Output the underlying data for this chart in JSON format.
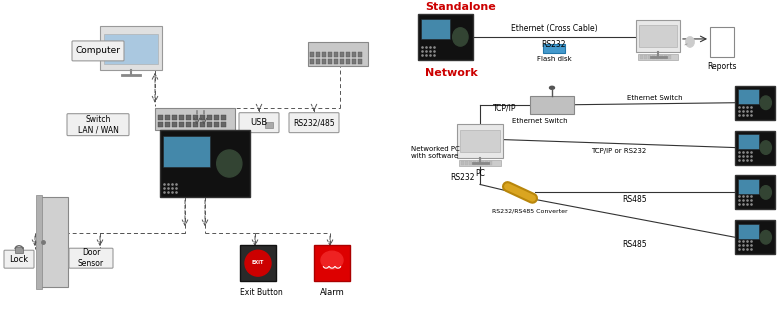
{
  "bg_color": "#ffffff",
  "left": {
    "computer_label": "Computer",
    "switch_label": "Switch\nLAN / WAN",
    "usb_label": "USB",
    "rs232_label": "RS232/485",
    "lock_label": "Lock",
    "door_sensor_label": "Door\nSensor",
    "exit_button_label": "Exit\nButton",
    "alarm_label": "Alarm"
  },
  "right": {
    "standalone_label": "Standalone",
    "network_label": "Network",
    "ethernet_label": "Ethernet (Cross Cable)",
    "rs232_sa": "RS232",
    "flash_disk_label": "Flash disk",
    "reports_label": "Reports",
    "ethernet_switch_label1": "Ethernet Switch",
    "tcpip_label": "TCP/IP",
    "ethernet_switch_label2": "Ethernet Switch",
    "networked_pc_label": "Networked PC\nwith software",
    "pc_label": "PC",
    "tcpip_rs232_label": "TCP/IP or RS232",
    "rs485_label1": "RS485",
    "rs485_label2": "RS485",
    "rs232_label2": "RS232",
    "converter_label": "RS232/RS485 Converter"
  },
  "colors": {
    "bg": "#ffffff",
    "standalone_red": "#cc0000",
    "network_red": "#cc0000",
    "box_fill": "#f0f0f0",
    "box_border": "#888888",
    "line_color": "#333333",
    "dashed_line": "#555555",
    "alarm_red": "#dd0000",
    "exit_red": "#cc0000",
    "flash_blue": "#4499cc",
    "device_dark": "#111111",
    "screen_blue": "#4488aa",
    "fp_green": "#334433"
  }
}
